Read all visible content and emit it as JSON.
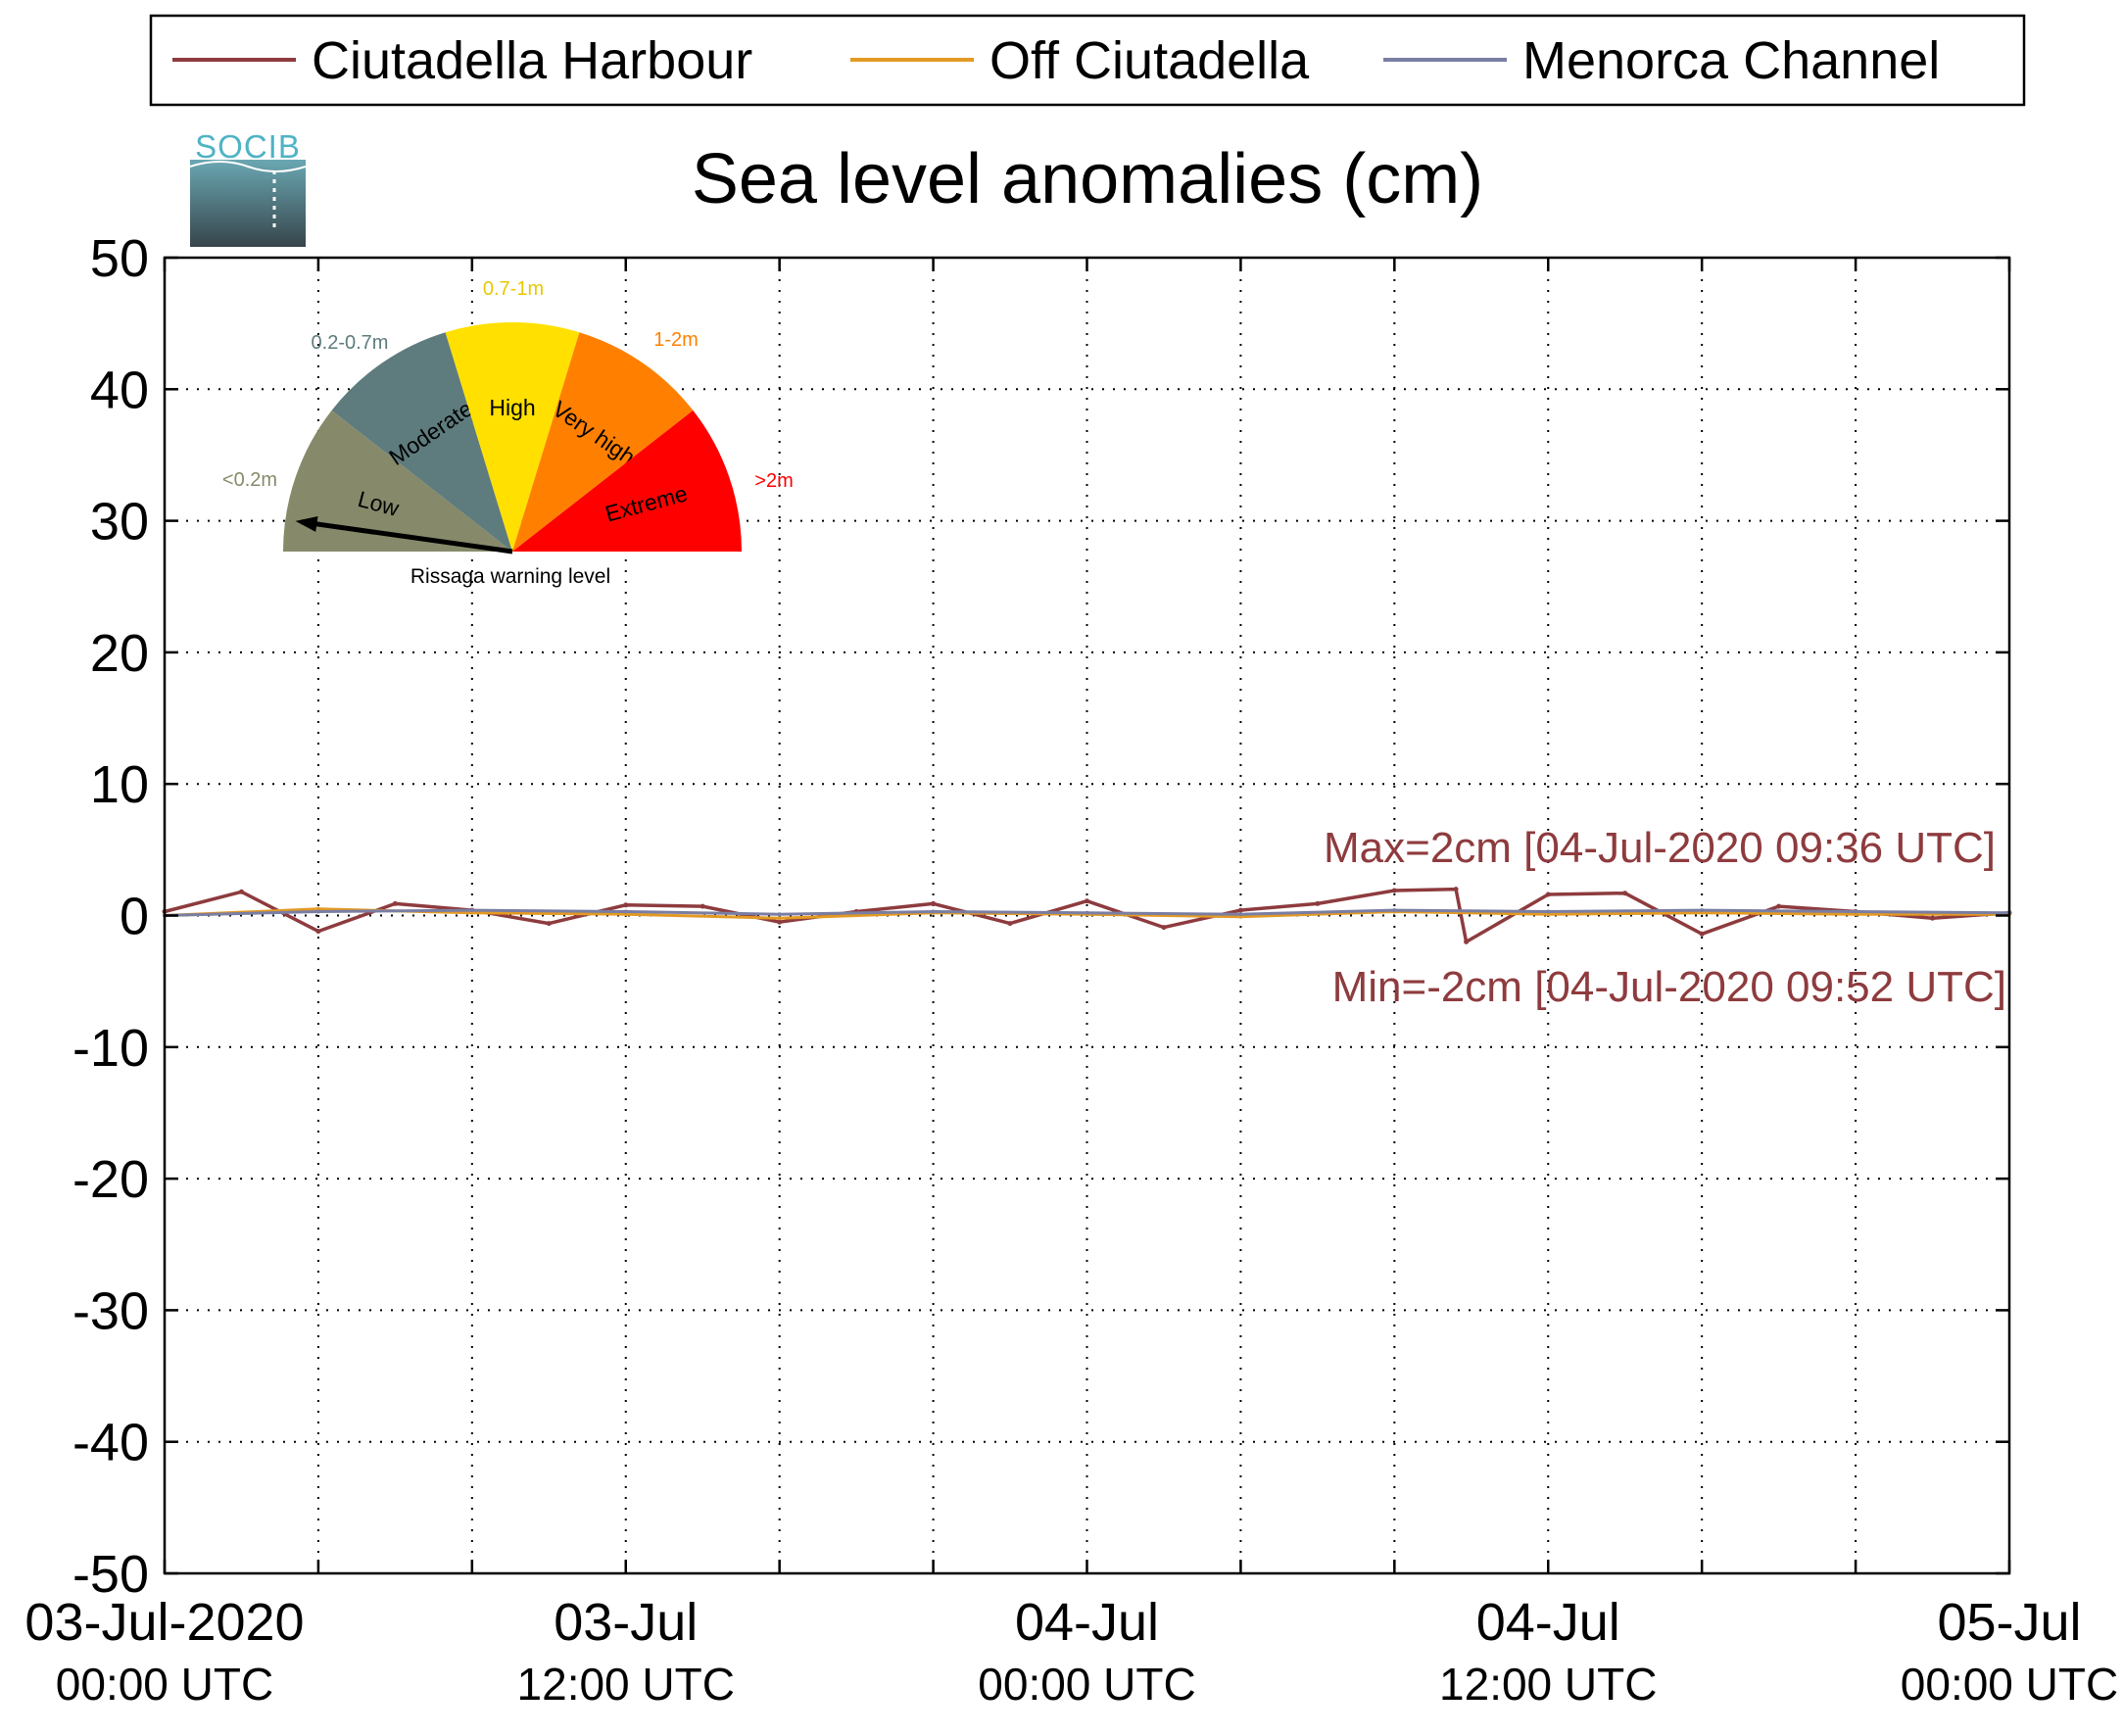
{
  "logo": {
    "text": "SOCIB"
  },
  "chart_data": {
    "type": "line",
    "title": "Sea level anomalies (cm)",
    "xlabel": "",
    "ylabel": "",
    "xlim": [
      "2020-07-03 00:00",
      "2020-07-05 00:00"
    ],
    "ylim": [
      -50,
      50
    ],
    "grid": true,
    "legend_position": "top",
    "yticks": [
      50,
      40,
      30,
      20,
      10,
      0,
      -10,
      -20,
      -30,
      -40,
      -50
    ],
    "xticks": [
      {
        "line1": "03-Jul-2020",
        "line2": "00:00 UTC"
      },
      {
        "line1": "03-Jul",
        "line2": "12:00 UTC"
      },
      {
        "line1": "04-Jul",
        "line2": "00:00 UTC"
      },
      {
        "line1": "04-Jul",
        "line2": "12:00 UTC"
      },
      {
        "line1": "05-Jul",
        "line2": "00:00 UTC"
      }
    ],
    "series": [
      {
        "name": "Ciutadella Harbour",
        "color": "#8e3b3e",
        "x": [
          "2020-07-03 00:00",
          "2020-07-03 02:00",
          "2020-07-03 04:00",
          "2020-07-03 06:00",
          "2020-07-03 08:00",
          "2020-07-03 10:00",
          "2020-07-03 12:00",
          "2020-07-03 14:00",
          "2020-07-03 16:00",
          "2020-07-03 18:00",
          "2020-07-03 20:00",
          "2020-07-03 22:00",
          "2020-07-04 00:00",
          "2020-07-04 02:00",
          "2020-07-04 04:00",
          "2020-07-04 06:00",
          "2020-07-04 08:00",
          "2020-07-04 09:36",
          "2020-07-04 09:52",
          "2020-07-04 12:00",
          "2020-07-04 14:00",
          "2020-07-04 16:00",
          "2020-07-04 18:00",
          "2020-07-04 20:00",
          "2020-07-04 22:00",
          "2020-07-05 00:00"
        ],
        "y": [
          0.3,
          1.8,
          -1.2,
          0.9,
          0.4,
          -0.6,
          0.8,
          0.7,
          -0.5,
          0.3,
          0.9,
          -0.6,
          1.1,
          -0.9,
          0.4,
          0.9,
          1.9,
          2,
          -2,
          1.6,
          1.7,
          -1.4,
          0.7,
          0.3,
          -0.2,
          0.2
        ]
      },
      {
        "name": "Off Ciutadella",
        "color": "#e39a24",
        "x": [
          "2020-07-03 00:00",
          "2020-07-03 04:00",
          "2020-07-03 08:00",
          "2020-07-03 12:00",
          "2020-07-03 16:00",
          "2020-07-03 20:00",
          "2020-07-04 00:00",
          "2020-07-04 04:00",
          "2020-07-04 08:00",
          "2020-07-04 12:00",
          "2020-07-04 16:00",
          "2020-07-04 20:00",
          "2020-07-05 00:00"
        ],
        "y": [
          0,
          0.5,
          0.2,
          0.1,
          -0.2,
          0.2,
          0.1,
          -0.1,
          0.3,
          0.1,
          0.2,
          0.1,
          0.1
        ]
      },
      {
        "name": "Menorca Channel",
        "color": "#7a7ea3",
        "x": [
          "2020-07-03 00:00",
          "2020-07-03 04:00",
          "2020-07-03 08:00",
          "2020-07-03 12:00",
          "2020-07-03 16:00",
          "2020-07-03 20:00",
          "2020-07-04 00:00",
          "2020-07-04 04:00",
          "2020-07-04 08:00",
          "2020-07-04 12:00",
          "2020-07-04 16:00",
          "2020-07-04 20:00",
          "2020-07-05 00:00"
        ],
        "y": [
          0,
          0.3,
          0.4,
          0.3,
          0.1,
          0.3,
          0.2,
          0.1,
          0.4,
          0.3,
          0.4,
          0.3,
          0.2
        ]
      }
    ],
    "annotations": [
      {
        "id": "max",
        "text": "Max=2cm [04-Jul-2020 09:36 UTC]",
        "color": "#8e3b3e"
      },
      {
        "id": "min",
        "text": "Min=-2cm [04-Jul-2020 09:52 UTC]",
        "color": "#8e3b3e"
      }
    ]
  },
  "gauge": {
    "caption": "Rissaga warning level",
    "pointer_level": "Low",
    "sectors": [
      {
        "name": "Low",
        "range": "<0.2m",
        "color": "#868a6a",
        "range_color": "#868a6a",
        "label_color": "#000000"
      },
      {
        "name": "Moderate",
        "range": "0.2-0.7m",
        "color": "#5e7b7d",
        "range_color": "#5e7b7d",
        "label_color": "#000000"
      },
      {
        "name": "High",
        "range": "0.7-1m",
        "color": "#ffe000",
        "range_color": "#e8c800",
        "label_color": "#000000"
      },
      {
        "name": "Very high",
        "range": "1-2m",
        "color": "#ff8000",
        "range_color": "#ff8000",
        "label_color": "#000000"
      },
      {
        "name": "Extreme",
        "range": ">2m",
        "color": "#ff0000",
        "range_color": "#ff0000",
        "label_color": "#000000"
      }
    ]
  }
}
